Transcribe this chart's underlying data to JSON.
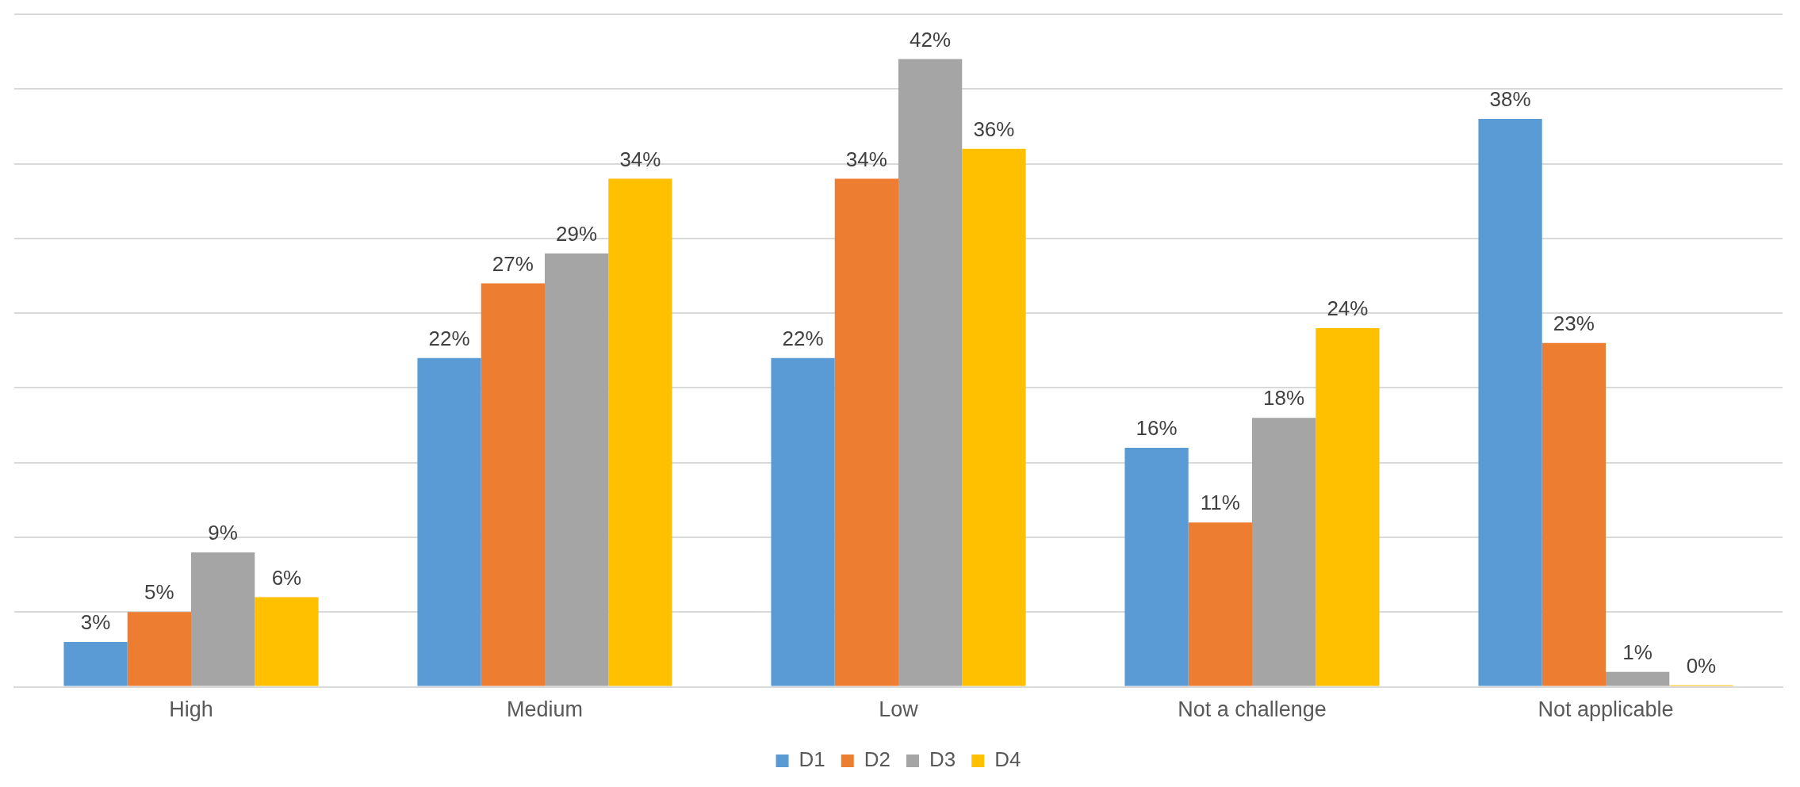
{
  "chart_data": {
    "type": "bar",
    "categories": [
      "High",
      "Medium",
      "Low",
      "Not a challenge",
      "Not applicable"
    ],
    "series": [
      {
        "name": "D1",
        "color": "#5b9bd5",
        "values": [
          3,
          22,
          22,
          16,
          38
        ],
        "value_labels": [
          "3%",
          "22%",
          "22%",
          "16%",
          "38%"
        ]
      },
      {
        "name": "D2",
        "color": "#ed7d31",
        "values": [
          5,
          27,
          34,
          11,
          23
        ],
        "value_labels": [
          "5%",
          "27%",
          "34%",
          "11%",
          "23%"
        ]
      },
      {
        "name": "D3",
        "color": "#a5a5a5",
        "values": [
          9,
          29,
          42,
          18,
          1
        ],
        "value_labels": [
          "9%",
          "29%",
          "42%",
          "18%",
          "1%"
        ]
      },
      {
        "name": "D4",
        "color": "#ffc000",
        "values": [
          6,
          34,
          36,
          24,
          0
        ],
        "value_labels": [
          "6%",
          "34%",
          "36%",
          "24%",
          "0%"
        ]
      }
    ],
    "ylim": [
      0,
      45
    ],
    "yticks": [
      {
        "value": 0,
        "label": null
      },
      {
        "value": 5,
        "label": null
      },
      {
        "value": 10,
        "label": null
      },
      {
        "value": 15,
        "label": null
      },
      {
        "value": 20,
        "label": null
      },
      {
        "value": 25,
        "label": null
      },
      {
        "value": 30,
        "label": null
      },
      {
        "value": 35,
        "label": null
      },
      {
        "value": 40,
        "label": null
      },
      {
        "value": 45,
        "label": null
      }
    ],
    "grid": "y",
    "legend": "bottom",
    "tick_labels": "x"
  }
}
